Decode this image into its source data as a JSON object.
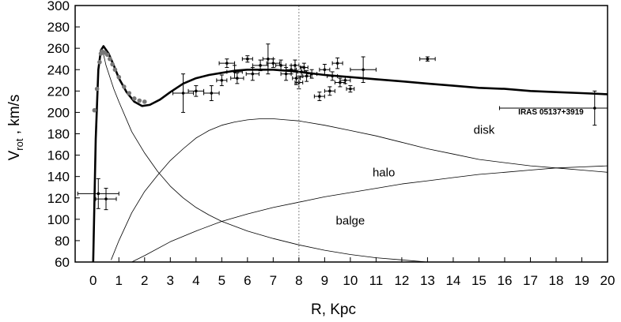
{
  "chart_data": {
    "type": "line",
    "title": "",
    "xlabel": "R,  Kpc",
    "ylabel": {
      "main": "V",
      "sub": "rot",
      "rest": " ,   km/s"
    },
    "xlim": [
      -0.7,
      20
    ],
    "ylim": [
      60,
      300
    ],
    "x_ticks": [
      0,
      1,
      2,
      3,
      4,
      5,
      6,
      7,
      8,
      9,
      10,
      11,
      12,
      13,
      14,
      15,
      16,
      17,
      18,
      19,
      20
    ],
    "y_ticks": [
      60,
      80,
      100,
      120,
      140,
      160,
      180,
      200,
      220,
      240,
      260,
      280,
      300
    ],
    "grid": false,
    "legend": "none",
    "reference_line": {
      "x": 8,
      "style": "dotted"
    },
    "series": [
      {
        "name": "",
        "style": "thick",
        "x": [
          0,
          0.1,
          0.2,
          0.3,
          0.4,
          0.6,
          0.8,
          1.0,
          1.3,
          1.6,
          1.9,
          2.2,
          2.6,
          3.0,
          3.5,
          4.0,
          4.5,
          5.0,
          5.5,
          6.0,
          6.5,
          7.0,
          7.5,
          8.0,
          9.0,
          10.0,
          11.0,
          12.0,
          13.0,
          14.0,
          15.0,
          16.0,
          17.0,
          18.0,
          19.0,
          20.0
        ],
        "y": [
          60,
          175,
          240,
          258,
          262,
          255,
          244,
          232,
          219,
          210,
          206,
          207,
          212,
          219,
          227,
          232,
          235,
          237,
          239,
          240,
          240,
          240,
          239,
          238,
          235,
          233,
          231,
          229,
          227,
          225,
          223,
          222,
          220,
          219,
          218,
          217
        ]
      },
      {
        "name": "disk",
        "style": "thin",
        "x": [
          0.7,
          1.0,
          1.5,
          2.0,
          2.5,
          3.0,
          3.5,
          4.0,
          4.5,
          5.0,
          5.5,
          6.0,
          6.5,
          7.0,
          7.5,
          8.0,
          9.0,
          10.0,
          11.0,
          12.0,
          13.0,
          14.0,
          15.0,
          16.0,
          17.0,
          18.0,
          19.0,
          20.0
        ],
        "y": [
          62,
          80,
          106,
          126,
          141,
          155,
          166,
          176,
          183,
          188,
          191,
          193,
          194,
          194,
          193,
          192,
          188,
          183,
          178,
          172,
          166,
          161,
          156,
          153,
          150,
          148,
          146,
          144
        ]
      },
      {
        "name": "halo",
        "style": "thin",
        "x": [
          1.5,
          2.0,
          3.0,
          4.0,
          5.0,
          6.0,
          7.0,
          8.0,
          9.0,
          10.0,
          11.0,
          12.0,
          13.0,
          14.0,
          15.0,
          16.0,
          17.0,
          18.0,
          19.0,
          20.0
        ],
        "y": [
          60,
          66,
          79,
          89,
          98,
          105,
          111,
          116,
          121,
          125,
          129,
          133,
          136,
          139,
          142,
          144,
          146,
          148,
          149,
          150
        ]
      },
      {
        "name": "balge",
        "style": "thin",
        "x": [
          0.35,
          0.5,
          0.8,
          1.0,
          1.5,
          2.0,
          2.5,
          3.0,
          3.5,
          4.0,
          4.5,
          5.0,
          6.0,
          7.0,
          8.0,
          9.0,
          10.0,
          11.0,
          12.0,
          13.0
        ],
        "y": [
          260,
          244,
          222,
          210,
          182,
          162,
          145,
          131,
          120,
          111,
          104,
          98,
          89,
          82,
          76,
          71,
          67,
          64,
          62,
          60
        ]
      }
    ],
    "gray_points": {
      "x": [
        0.05,
        0.15,
        0.25,
        0.3,
        0.35,
        0.45,
        0.55,
        0.65,
        0.75,
        0.85,
        1.0,
        1.2,
        1.4,
        1.6,
        1.8,
        2.0
      ],
      "y": [
        202,
        222,
        247,
        255,
        257,
        256,
        254,
        250,
        245,
        240,
        233,
        224,
        218,
        213,
        211,
        210
      ]
    },
    "error_points": [
      {
        "x": 0.2,
        "y": 124,
        "xerr": 0.8,
        "yerr": 14
      },
      {
        "x": 0.5,
        "y": 119,
        "xerr": 0.4,
        "yerr": 10
      },
      {
        "x": 3.5,
        "y": 218,
        "xerr": 0.4,
        "yerr": 18
      },
      {
        "x": 4.0,
        "y": 220,
        "xerr": 0.3,
        "yerr": 5
      },
      {
        "x": 4.6,
        "y": 218,
        "xerr": 0.3,
        "yerr": 7
      },
      {
        "x": 5.0,
        "y": 230,
        "xerr": 0.2,
        "yerr": 5
      },
      {
        "x": 5.2,
        "y": 246,
        "xerr": 0.3,
        "yerr": 4
      },
      {
        "x": 5.5,
        "y": 238,
        "xerr": 0.3,
        "yerr": 6
      },
      {
        "x": 5.6,
        "y": 232,
        "xerr": 0.25,
        "yerr": 5
      },
      {
        "x": 6.0,
        "y": 250,
        "xerr": 0.2,
        "yerr": 3
      },
      {
        "x": 6.2,
        "y": 236,
        "xerr": 0.25,
        "yerr": 6
      },
      {
        "x": 6.5,
        "y": 244,
        "xerr": 0.3,
        "yerr": 5
      },
      {
        "x": 6.8,
        "y": 250,
        "xerr": 0.2,
        "yerr": 14
      },
      {
        "x": 7.0,
        "y": 246,
        "xerr": 0.25,
        "yerr": 4
      },
      {
        "x": 7.3,
        "y": 244,
        "xerr": 0.2,
        "yerr": 5
      },
      {
        "x": 7.5,
        "y": 236,
        "xerr": 0.2,
        "yerr": 6
      },
      {
        "x": 7.7,
        "y": 240,
        "xerr": 0.2,
        "yerr": 4
      },
      {
        "x": 7.85,
        "y": 244,
        "xerr": 0.15,
        "yerr": 5
      },
      {
        "x": 7.9,
        "y": 232,
        "xerr": 0.15,
        "yerr": 6
      },
      {
        "x": 8.0,
        "y": 228,
        "xerr": 0.15,
        "yerr": 6
      },
      {
        "x": 8.1,
        "y": 238,
        "xerr": 0.15,
        "yerr": 5
      },
      {
        "x": 8.2,
        "y": 242,
        "xerr": 0.15,
        "yerr": 4
      },
      {
        "x": 8.3,
        "y": 234,
        "xerr": 0.15,
        "yerr": 5
      },
      {
        "x": 8.5,
        "y": 236,
        "xerr": 0.2,
        "yerr": 4
      },
      {
        "x": 8.8,
        "y": 215,
        "xerr": 0.2,
        "yerr": 4
      },
      {
        "x": 9.0,
        "y": 240,
        "xerr": 0.2,
        "yerr": 5
      },
      {
        "x": 9.2,
        "y": 220,
        "xerr": 0.2,
        "yerr": 4
      },
      {
        "x": 9.3,
        "y": 234,
        "xerr": 0.2,
        "yerr": 4
      },
      {
        "x": 9.5,
        "y": 246,
        "xerr": 0.2,
        "yerr": 5
      },
      {
        "x": 9.6,
        "y": 228,
        "xerr": 0.2,
        "yerr": 4
      },
      {
        "x": 9.8,
        "y": 230,
        "xerr": 0.2,
        "yerr": 3
      },
      {
        "x": 10.0,
        "y": 222,
        "xerr": 0.15,
        "yerr": 3
      },
      {
        "x": 10.5,
        "y": 240,
        "xerr": 0.5,
        "yerr": 12
      },
      {
        "x": 13.0,
        "y": 250,
        "xerr": 0.3,
        "yerr": 2
      },
      {
        "x": 19.5,
        "y": 204,
        "xerr": 3.7,
        "yerr": 16
      }
    ],
    "annotations": [
      {
        "text": "disk",
        "x": 15.2,
        "y": 180
      },
      {
        "text": "halo",
        "x": 11.3,
        "y": 140
      },
      {
        "text": "balge",
        "x": 10.0,
        "y": 95
      },
      {
        "text": "IRAS 05137+3919",
        "x": 17.8,
        "y": 198
      }
    ]
  }
}
